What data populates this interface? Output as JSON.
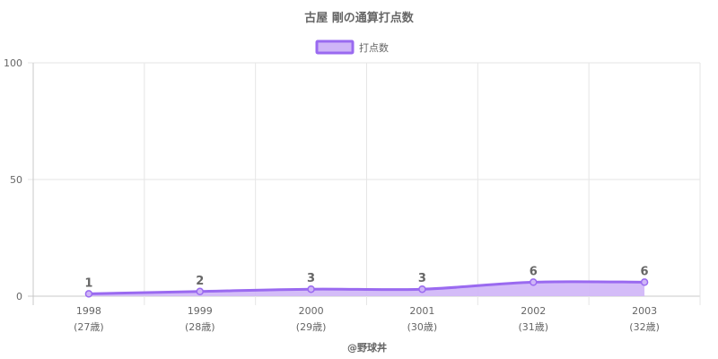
{
  "chart_data": {
    "type": "line",
    "title": "古屋 剛の通算打点数",
    "categories": [
      "1998",
      "1999",
      "2000",
      "2001",
      "2002",
      "2003"
    ],
    "category_sublabels": [
      "(27歳)",
      "(28歳)",
      "(29歳)",
      "(30歳)",
      "(31歳)",
      "(32歳)"
    ],
    "series": [
      {
        "name": "打点数",
        "values": [
          1,
          2,
          3,
          3,
          6,
          6
        ]
      }
    ],
    "ylim": [
      0,
      100
    ],
    "yticks": [
      "0",
      "50",
      "100"
    ],
    "data_labels": [
      "1",
      "2",
      "3",
      "3",
      "6",
      "6"
    ],
    "grid": true,
    "legend_position": "top",
    "fill": "area",
    "colors": {
      "line": "#9a6af0",
      "fill": "#cfb5f7",
      "grid": "#e6e6e6",
      "axis": "#c8c8c8",
      "text": "#666666"
    }
  },
  "footer": {
    "credit": "@野球丼"
  }
}
